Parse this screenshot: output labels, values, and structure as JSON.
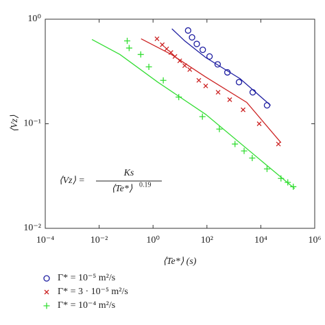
{
  "chart_data": {
    "type": "scatter",
    "xlabel": "⟨Te*⟩ (s)",
    "ylabel": "⟨Vz⟩",
    "log_x": true,
    "log_y": true,
    "xlim": [
      0.0001,
      1000000
    ],
    "ylim": [
      0.01,
      1
    ],
    "xticks": [
      {
        "value": 0.0001,
        "label": "10⁻⁴"
      },
      {
        "value": 0.01,
        "label": "10⁻²"
      },
      {
        "value": 1,
        "label": "10⁰"
      },
      {
        "value": 100,
        "label": "10²"
      },
      {
        "value": 10000,
        "label": "10⁴"
      },
      {
        "value": 1000000,
        "label": "10⁶"
      }
    ],
    "yticks": [
      {
        "value": 0.01,
        "label": "10⁻²"
      },
      {
        "value": 0.1,
        "label": "10⁻¹"
      },
      {
        "value": 1,
        "label": "10⁰"
      }
    ],
    "annotation": {
      "lhs": "⟨Vz⟩ =",
      "numerator": "Ks",
      "denominator": "⟨Te*⟩",
      "exponent": "0.19"
    },
    "series": [
      {
        "name": "Γ* = 10⁻⁵ m²/s",
        "color": "#1c1ca0",
        "marker": "o",
        "x": [
          20,
          28,
          42,
          70,
          125,
          250,
          575,
          1550,
          5000,
          17000
        ],
        "values": [
          0.78,
          0.67,
          0.58,
          0.51,
          0.44,
          0.37,
          0.31,
          0.25,
          0.2,
          0.15
        ]
      },
      {
        "name": "Γ* = 3 · 10⁻⁵ m²/s",
        "color": "#cc2222",
        "marker": "x",
        "x": [
          1.4,
          2.2,
          3.2,
          4.6,
          6.5,
          9.8,
          15,
          23,
          50,
          90,
          260,
          700,
          2200,
          8700,
          45000
        ],
        "values": [
          0.65,
          0.57,
          0.52,
          0.48,
          0.44,
          0.4,
          0.36,
          0.33,
          0.26,
          0.23,
          0.2,
          0.17,
          0.136,
          0.1,
          0.064
        ]
      },
      {
        "name": "Γ* = 10⁻⁴ m²/s",
        "color": "#33dd33",
        "marker": "+",
        "x": [
          0.11,
          0.13,
          0.35,
          0.7,
          2.4,
          9,
          68,
          290,
          1100,
          2400,
          4800,
          17000,
          56000,
          100000,
          160000
        ],
        "values": [
          0.62,
          0.53,
          0.46,
          0.35,
          0.26,
          0.18,
          0.117,
          0.089,
          0.064,
          0.055,
          0.047,
          0.037,
          0.03,
          0.0275,
          0.025
        ]
      }
    ],
    "fits": [
      {
        "color": "#1c1ca0",
        "x": [
          5,
          15,
          90,
          1700,
          23000
        ],
        "values": [
          0.81,
          0.62,
          0.43,
          0.27,
          0.15
        ]
      },
      {
        "color": "#cc2222",
        "x": [
          0.36,
          4.8,
          90,
          3000,
          56000
        ],
        "values": [
          0.65,
          0.46,
          0.28,
          0.16,
          0.066
        ]
      },
      {
        "color": "#33dd33",
        "x": [
          0.0054,
          0.059,
          1.5,
          90,
          180000
        ],
        "values": [
          0.64,
          0.46,
          0.25,
          0.123,
          0.024
        ]
      }
    ]
  }
}
